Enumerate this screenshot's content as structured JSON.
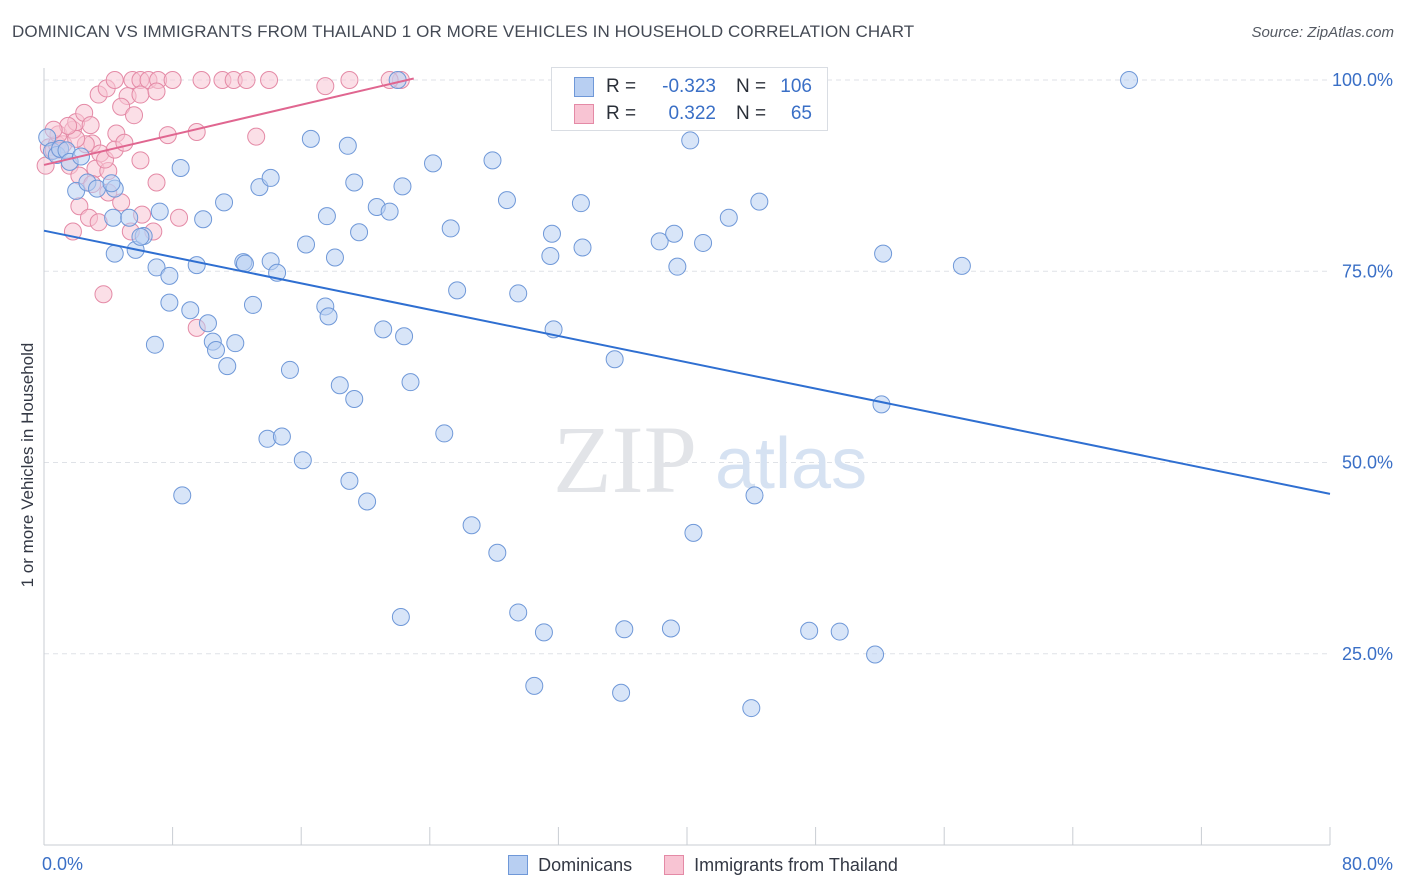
{
  "header": {
    "title": "DOMINICAN VS IMMIGRANTS FROM THAILAND 1 OR MORE VEHICLES IN HOUSEHOLD CORRELATION CHART",
    "source": "Source: ZipAtlas.com"
  },
  "watermark": {
    "zip": "ZIP",
    "atlas": "atlas"
  },
  "stats": {
    "rows": [
      {
        "r_label": "R =",
        "r_value": "-0.323",
        "n_label": "N =",
        "n_value": "106"
      },
      {
        "r_label": "R =",
        "r_value": "0.322",
        "n_label": "N =",
        "n_value": "65"
      }
    ]
  },
  "legend": {
    "items": [
      "Dominicans",
      "Immigrants from Thailand"
    ]
  },
  "colors": {
    "blue_fill": "#b8cff2",
    "blue_stroke": "#6f98d8",
    "blue_line": "#2f6fd1",
    "pink_fill": "#f8c4d3",
    "pink_stroke": "#e48aa6",
    "pink_line": "#e06690",
    "tick_label": "#3a6fc6"
  },
  "chart_data": {
    "type": "scatter",
    "title": "DOMINICAN VS IMMIGRANTS FROM THAILAND 1 OR MORE VEHICLES IN HOUSEHOLD CORRELATION CHART",
    "xlabel": "",
    "ylabel": "1 or more Vehicles in Household",
    "xlim": [
      0,
      80
    ],
    "ylim": [
      0,
      105
    ],
    "x_tick_labels": [
      "0.0%",
      "80.0%"
    ],
    "y_ticks": [
      {
        "value": 25,
        "label": "25.0%"
      },
      {
        "value": 50,
        "label": "50.0%"
      },
      {
        "value": 75,
        "label": "75.0%"
      },
      {
        "value": 100,
        "label": "100.0%"
      }
    ],
    "grid": "horizontal dashed",
    "legend_position": "bottom-center",
    "series": [
      {
        "name": "Dominicans",
        "r": -0.323,
        "n": 106,
        "trend": {
          "x": [
            0,
            80
          ],
          "y": [
            80.3,
            45.9
          ]
        },
        "points": [
          [
            0.2,
            92.5
          ],
          [
            0.5,
            90.7
          ],
          [
            0.8,
            90.2
          ],
          [
            1.0,
            91.0
          ],
          [
            1.4,
            90.8
          ],
          [
            1.6,
            89.3
          ],
          [
            2.3,
            90.0
          ],
          [
            2.0,
            85.5
          ],
          [
            2.7,
            86.6
          ],
          [
            3.3,
            85.8
          ],
          [
            4.4,
            85.8
          ],
          [
            4.3,
            82.0
          ],
          [
            4.2,
            86.5
          ],
          [
            5.3,
            82.0
          ],
          [
            5.7,
            77.8
          ],
          [
            4.4,
            77.3
          ],
          [
            6.2,
            79.6
          ],
          [
            6.0,
            79.5
          ],
          [
            7.2,
            82.8
          ],
          [
            7.0,
            75.5
          ],
          [
            7.8,
            74.4
          ],
          [
            8.5,
            88.5
          ],
          [
            9.5,
            75.8
          ],
          [
            9.9,
            81.8
          ],
          [
            11.2,
            84.0
          ],
          [
            12.4,
            76.2
          ],
          [
            12.5,
            76.0
          ],
          [
            13.4,
            86.0
          ],
          [
            14.1,
            87.2
          ],
          [
            14.1,
            76.3
          ],
          [
            14.5,
            74.8
          ],
          [
            16.3,
            78.5
          ],
          [
            16.6,
            92.3
          ],
          [
            17.6,
            82.2
          ],
          [
            18.1,
            76.8
          ],
          [
            18.9,
            91.4
          ],
          [
            19.3,
            86.6
          ],
          [
            19.6,
            80.1
          ],
          [
            20.7,
            83.4
          ],
          [
            21.5,
            82.8
          ],
          [
            22.3,
            86.1
          ],
          [
            24.2,
            89.1
          ],
          [
            25.3,
            80.6
          ],
          [
            25.7,
            72.5
          ],
          [
            27.9,
            89.5
          ],
          [
            28.8,
            84.3
          ],
          [
            29.5,
            72.1
          ],
          [
            31.5,
            77.0
          ],
          [
            31.6,
            79.9
          ],
          [
            33.4,
            83.9
          ],
          [
            33.5,
            78.1
          ],
          [
            34.8,
            100.0
          ],
          [
            38.3,
            78.9
          ],
          [
            39.2,
            79.9
          ],
          [
            39.4,
            75.6
          ],
          [
            40.2,
            92.1
          ],
          [
            41.0,
            78.7
          ],
          [
            42.6,
            82.0
          ],
          [
            44.5,
            84.1
          ],
          [
            46.1,
            100.0
          ],
          [
            52.2,
            77.3
          ],
          [
            57.1,
            75.7
          ],
          [
            67.5,
            100.0
          ],
          [
            22.0,
            100.0
          ],
          [
            6.9,
            65.4
          ],
          [
            7.8,
            70.9
          ],
          [
            9.1,
            69.9
          ],
          [
            10.2,
            68.2
          ],
          [
            10.5,
            65.8
          ],
          [
            10.7,
            64.7
          ],
          [
            11.4,
            62.6
          ],
          [
            11.9,
            65.6
          ],
          [
            13.0,
            70.6
          ],
          [
            15.3,
            62.1
          ],
          [
            17.5,
            70.4
          ],
          [
            17.7,
            69.1
          ],
          [
            18.4,
            60.1
          ],
          [
            19.3,
            58.3
          ],
          [
            21.1,
            67.4
          ],
          [
            22.4,
            66.5
          ],
          [
            22.8,
            60.5
          ],
          [
            24.9,
            53.8
          ],
          [
            31.7,
            67.4
          ],
          [
            35.5,
            63.5
          ],
          [
            52.1,
            57.6
          ],
          [
            13.9,
            53.1
          ],
          [
            14.8,
            53.4
          ],
          [
            16.1,
            50.3
          ],
          [
            19.0,
            47.6
          ],
          [
            20.1,
            44.9
          ],
          [
            8.6,
            45.7
          ],
          [
            26.6,
            41.8
          ],
          [
            28.2,
            38.2
          ],
          [
            29.5,
            30.4
          ],
          [
            31.1,
            27.8
          ],
          [
            22.2,
            29.8
          ],
          [
            36.1,
            28.2
          ],
          [
            40.4,
            40.8
          ],
          [
            44.2,
            45.7
          ],
          [
            47.6,
            28.0
          ],
          [
            49.5,
            27.9
          ],
          [
            51.7,
            24.9
          ],
          [
            30.5,
            20.8
          ],
          [
            35.9,
            19.9
          ],
          [
            44.0,
            17.9
          ],
          [
            39.0,
            28.3
          ]
        ]
      },
      {
        "name": "Immigrants from Thailand",
        "r": 0.322,
        "n": 65,
        "trend": {
          "x": [
            0,
            23
          ],
          "y": [
            88.9,
            100.2
          ]
        },
        "points": [
          [
            0.1,
            88.8
          ],
          [
            0.3,
            91.2
          ],
          [
            0.6,
            90.8
          ],
          [
            0.8,
            91.6
          ],
          [
            1.0,
            90.9
          ],
          [
            1.2,
            91.6
          ],
          [
            0.9,
            92.9
          ],
          [
            1.6,
            88.8
          ],
          [
            1.8,
            93.5
          ],
          [
            2.0,
            94.5
          ],
          [
            2.5,
            95.7
          ],
          [
            2.9,
            94.1
          ],
          [
            3.4,
            98.1
          ],
          [
            3.9,
            98.9
          ],
          [
            4.4,
            100.0
          ],
          [
            5.5,
            100.0
          ],
          [
            6.0,
            100.0
          ],
          [
            6.5,
            100.0
          ],
          [
            7.1,
            100.0
          ],
          [
            8.0,
            100.0
          ],
          [
            11.1,
            100.0
          ],
          [
            11.8,
            100.0
          ],
          [
            12.6,
            100.0
          ],
          [
            17.5,
            99.2
          ],
          [
            19.0,
            100.0
          ],
          [
            22.2,
            100.0
          ],
          [
            5.2,
            97.9
          ],
          [
            4.8,
            96.5
          ],
          [
            6.0,
            98.1
          ],
          [
            4.5,
            93.0
          ],
          [
            3.0,
            91.7
          ],
          [
            3.5,
            90.4
          ],
          [
            2.6,
            91.6
          ],
          [
            3.2,
            88.4
          ],
          [
            4.0,
            88.1
          ],
          [
            6.0,
            89.5
          ],
          [
            7.7,
            92.8
          ],
          [
            9.5,
            93.2
          ],
          [
            13.2,
            92.6
          ],
          [
            5.6,
            95.4
          ],
          [
            2.2,
            87.5
          ],
          [
            3.0,
            86.4
          ],
          [
            4.0,
            85.3
          ],
          [
            2.2,
            83.5
          ],
          [
            2.8,
            82.0
          ],
          [
            3.4,
            81.4
          ],
          [
            4.8,
            84.0
          ],
          [
            5.4,
            80.2
          ],
          [
            6.1,
            82.4
          ],
          [
            8.4,
            82.0
          ],
          [
            7.0,
            86.6
          ],
          [
            6.8,
            80.2
          ],
          [
            1.8,
            80.2
          ],
          [
            3.7,
            72.0
          ],
          [
            9.5,
            67.6
          ],
          [
            3.8,
            89.6
          ],
          [
            2.0,
            92.3
          ],
          [
            1.5,
            94.0
          ],
          [
            0.6,
            93.5
          ],
          [
            4.4,
            90.9
          ],
          [
            5.0,
            91.8
          ],
          [
            7.0,
            98.5
          ],
          [
            9.8,
            100.0
          ],
          [
            14.0,
            100.0
          ],
          [
            21.5,
            100.0
          ]
        ]
      }
    ]
  }
}
